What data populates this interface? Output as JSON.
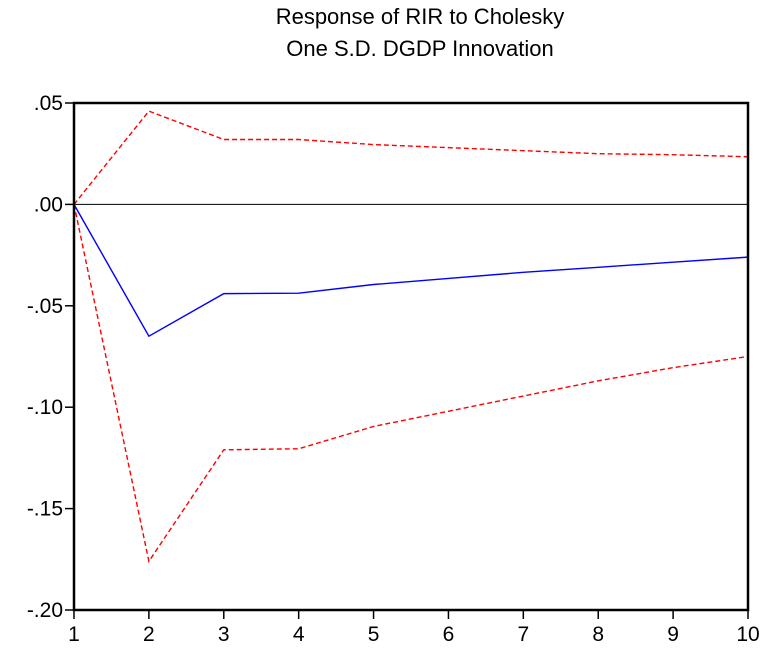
{
  "chart_data": {
    "type": "line",
    "title": [
      "Response of RIR to Cholesky",
      "One S.D. DGDP Innovation"
    ],
    "xlabel": "",
    "ylabel": "",
    "x": [
      1,
      2,
      3,
      4,
      5,
      6,
      7,
      8,
      9,
      10
    ],
    "xlim": [
      1,
      10
    ],
    "ylim": [
      -0.2,
      0.05
    ],
    "yticks": [
      0.05,
      0.0,
      -0.05,
      -0.1,
      -0.15,
      -0.2
    ],
    "ytick_labels": [
      ".05",
      ".00",
      "-.05",
      "-.10",
      "-.15",
      "-.20"
    ],
    "xtick_labels": [
      "1",
      "2",
      "3",
      "4",
      "5",
      "6",
      "7",
      "8",
      "9",
      "10"
    ],
    "zero_line": true,
    "grid": false,
    "legend": "none",
    "series": [
      {
        "role": "response",
        "color": "#0000ff",
        "dash": false,
        "values": [
          0.0,
          -0.065,
          -0.044,
          -0.0438,
          -0.0395,
          -0.0365,
          -0.0335,
          -0.031,
          -0.0285,
          -0.026
        ]
      },
      {
        "role": "upper-band",
        "color": "#ff0000",
        "dash": true,
        "values": [
          0.0,
          0.046,
          0.032,
          0.032,
          0.0295,
          0.028,
          0.0265,
          0.025,
          0.0245,
          0.0235
        ]
      },
      {
        "role": "lower-band",
        "color": "#ff0000",
        "dash": true,
        "values": [
          0.0,
          -0.176,
          -0.121,
          -0.1205,
          -0.1095,
          -0.102,
          -0.0945,
          -0.087,
          -0.0805,
          -0.075
        ]
      }
    ]
  }
}
